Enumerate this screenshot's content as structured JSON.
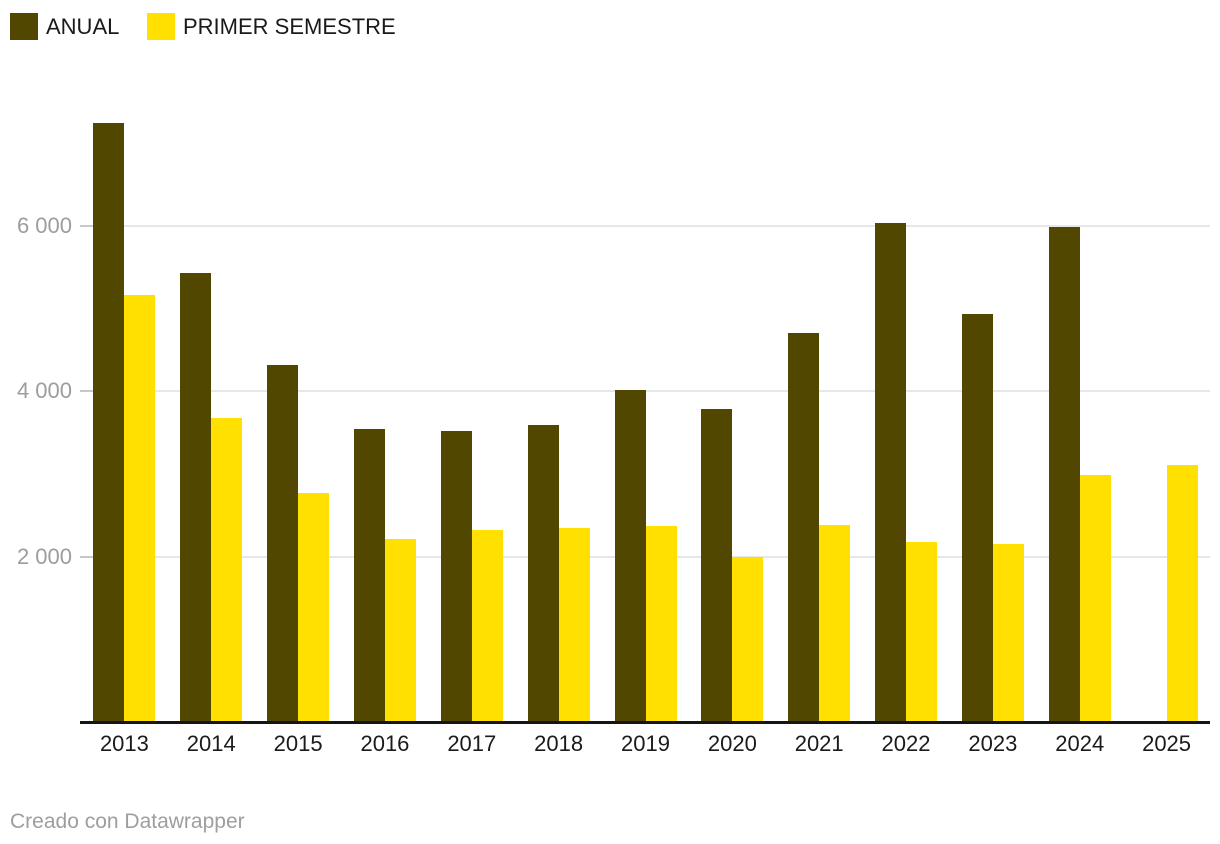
{
  "legend": {
    "items": [
      {
        "label": "ANUAL",
        "color": "#524700"
      },
      {
        "label": "PRIMER SEMESTRE",
        "color": "#ffe000"
      }
    ]
  },
  "footer": {
    "credit": "Creado con Datawrapper"
  },
  "colors": {
    "anual_bar": "#524700",
    "primer_semestre_bar": "#ffe000",
    "gridline": "#e7e7e7",
    "grid_tick": "#c8c8c8",
    "axis_line": "#151515",
    "y_tick_text": "#9d9d9d",
    "x_tick_text": "#1b1b1b",
    "credit_text": "#9e9e9e",
    "background": "#ffffff"
  },
  "chart_data": {
    "type": "bar",
    "title": "",
    "xlabel": "",
    "ylabel": "",
    "categories": [
      "2013",
      "2014",
      "2015",
      "2016",
      "2017",
      "2018",
      "2019",
      "2020",
      "2021",
      "2022",
      "2023",
      "2024",
      "2025"
    ],
    "series": [
      {
        "name": "ANUAL",
        "color": "#524700",
        "values": [
          7240,
          5430,
          4310,
          3535,
          3520,
          3595,
          4015,
          3785,
          4695,
          6025,
          4935,
          5985,
          null
        ]
      },
      {
        "name": "PRIMER SEMESTRE",
        "color": "#ffe000",
        "values": [
          5155,
          3668,
          2770,
          2210,
          2320,
          2350,
          2365,
          2000,
          2380,
          2180,
          2155,
          2990,
          3110
        ]
      }
    ],
    "ylim": [
      0,
      7400
    ],
    "yticks": [
      2000,
      4000,
      6000
    ],
    "ytick_labels": [
      "2 000",
      "4 000",
      "6 000"
    ],
    "grid": "horizontal",
    "legend_position": "top-left"
  }
}
